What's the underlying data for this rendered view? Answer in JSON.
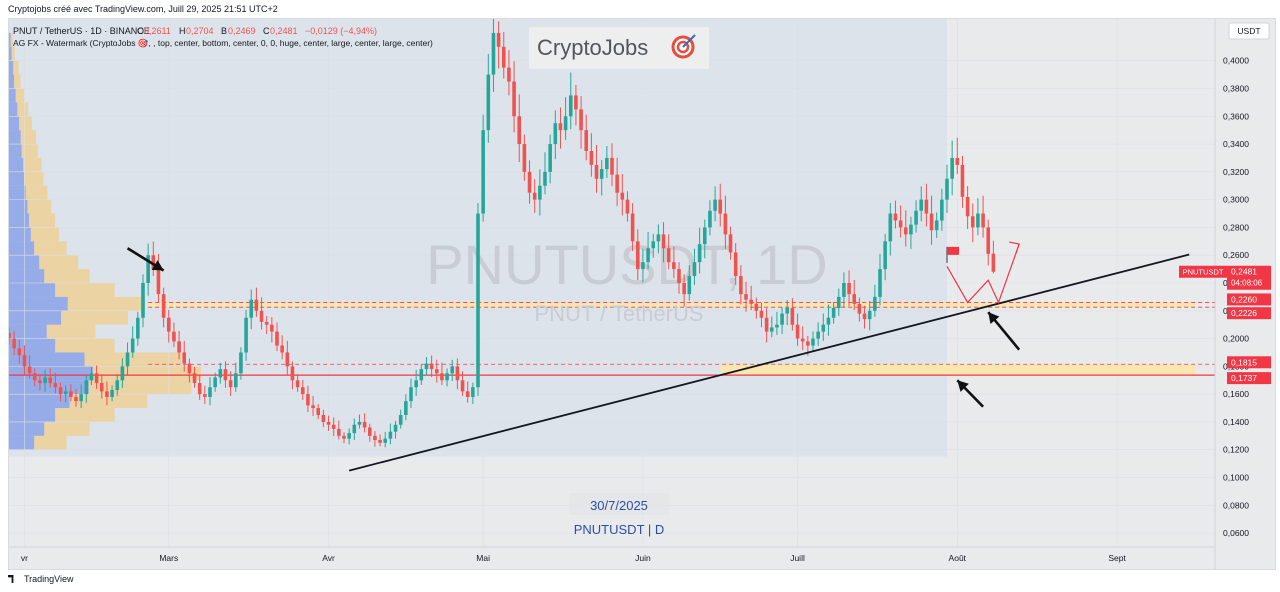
{
  "header": {
    "credit": "Cryptojobs créé avec TradingView.com, Juill 29, 2025 21:51 UTC+2"
  },
  "legend": {
    "symbol_line": "PNUT / TetherUS · 1D · BINANCE",
    "ohlc": [
      {
        "k": "O",
        "v": "0,2611"
      },
      {
        "k": "H",
        "v": "0,2704"
      },
      {
        "k": "B",
        "v": "0,2469"
      },
      {
        "k": "C",
        "v": "0,2481"
      }
    ],
    "change": "−0,0129 (−4,94%)",
    "indicator_line": "AG FX - Watermark (CryptoJobs 🎯, , top, center, bottom, center, 0, 0, huge, center, large, center, large, center)"
  },
  "watermark": {
    "brand": "CryptoJobs",
    "big_symbol": "PNUTUSDT, 1D",
    "sub_symbol": "PNUT / TetherUS",
    "date": "30/7/2025",
    "footer": "PNUTUSDT | D"
  },
  "currency_button": "USDT",
  "footer": {
    "brand": "TradingView"
  },
  "colors": {
    "up": "#26a69a",
    "down": "#ef5350",
    "trendline": "#131722",
    "level": "#f23645",
    "zone": "#fbe7a8",
    "marker": "#f23645",
    "profile_blue": "#5b7fe6",
    "profile_orange": "#f5c66a"
  },
  "chart_data": {
    "type": "candlestick",
    "symbol": "PNUT / TetherUS",
    "timeframe": "1D",
    "exchange": "BINANCE",
    "last": {
      "open": 0.2611,
      "high": 0.2704,
      "low": 0.2469,
      "close": 0.2481
    },
    "price_tag": {
      "symbol": "PNUTUSDT",
      "value": "0,2481",
      "countdown": "04:08:06"
    },
    "ylim": [
      0.05,
      0.43
    ],
    "y_ticks": [
      0.06,
      0.08,
      0.1,
      0.12,
      0.14,
      0.16,
      0.18,
      0.2,
      0.22,
      0.24,
      0.26,
      0.28,
      0.3,
      0.32,
      0.34,
      0.36,
      0.38,
      0.4
    ],
    "y_tick_labels": [
      "0,0600",
      "0,0800",
      "0,1000",
      "0,1200",
      "0,1400",
      "0,1600",
      "0,1800",
      "0,2000",
      "0,2200",
      "0,2400",
      "0,2600",
      "0,2800",
      "0,3000",
      "0,3200",
      "0,3400",
      "0,3600",
      "0,3800",
      "0,4000"
    ],
    "x_start": "2025-01-29",
    "x_end": "2025-09-20",
    "x_ticks": [
      {
        "label": "vr",
        "date": "2025-02-01"
      },
      {
        "label": "Mars",
        "date": "2025-03-01"
      },
      {
        "label": "Avr",
        "date": "2025-04-01"
      },
      {
        "label": "Mai",
        "date": "2025-05-01"
      },
      {
        "label": "Juin",
        "date": "2025-06-01"
      },
      {
        "label": "Juill",
        "date": "2025-07-01"
      },
      {
        "label": "Août",
        "date": "2025-08-01"
      },
      {
        "label": "Sept",
        "date": "2025-09-01"
      }
    ],
    "levels": [
      {
        "value": 0.226,
        "label": "0,2260",
        "style": "dashed"
      },
      {
        "value": 0.2226,
        "label": "0,2226",
        "style": "dashed"
      },
      {
        "value": 0.1815,
        "label": "0,1815",
        "style": "dashed"
      },
      {
        "value": 0.1737,
        "label": "0,1737",
        "style": "solid"
      }
    ],
    "zones": [
      {
        "from": 0.1737,
        "to": 0.1815,
        "start": "2025-06-16"
      },
      {
        "from": 0.2226,
        "to": 0.226,
        "start": "2025-02-25"
      }
    ],
    "trendline": {
      "from": {
        "date": "2025-04-05",
        "price": 0.105
      },
      "to": {
        "date": "2025-09-15",
        "price": 0.2605
      }
    },
    "projection": [
      {
        "date": "2025-07-30",
        "price": 0.252
      },
      {
        "date": "2025-08-03",
        "price": 0.226
      },
      {
        "date": "2025-08-07",
        "price": 0.242
      },
      {
        "date": "2025-08-09",
        "price": 0.226
      },
      {
        "date": "2025-08-13",
        "price": 0.268
      }
    ],
    "flag": {
      "date": "2025-07-30",
      "price": 0.266
    },
    "arrows": [
      {
        "from": {
          "date": "2025-02-21",
          "price": 0.265
        },
        "to": {
          "date": "2025-02-28",
          "price": 0.249
        }
      },
      {
        "from": {
          "date": "2025-08-13",
          "price": 0.192
        },
        "to": {
          "date": "2025-08-07",
          "price": 0.219
        }
      },
      {
        "from": {
          "date": "2025-08-06",
          "price": 0.151
        },
        "to": {
          "date": "2025-08-01",
          "price": 0.17
        }
      }
    ],
    "closes": [
      0.2,
      0.193,
      0.188,
      0.18,
      0.175,
      0.17,
      0.168,
      0.172,
      0.168,
      0.165,
      0.16,
      0.162,
      0.158,
      0.155,
      0.16,
      0.17,
      0.175,
      0.168,
      0.162,
      0.158,
      0.163,
      0.17,
      0.18,
      0.19,
      0.2,
      0.215,
      0.24,
      0.26,
      0.25,
      0.232,
      0.215,
      0.205,
      0.198,
      0.19,
      0.182,
      0.175,
      0.168,
      0.16,
      0.158,
      0.165,
      0.172,
      0.178,
      0.17,
      0.165,
      0.175,
      0.19,
      0.215,
      0.228,
      0.22,
      0.212,
      0.21,
      0.205,
      0.195,
      0.19,
      0.18,
      0.17,
      0.165,
      0.16,
      0.152,
      0.15,
      0.145,
      0.14,
      0.138,
      0.135,
      0.13,
      0.128,
      0.132,
      0.138,
      0.14,
      0.136,
      0.13,
      0.127,
      0.125,
      0.128,
      0.133,
      0.138,
      0.145,
      0.155,
      0.165,
      0.17,
      0.178,
      0.182,
      0.178,
      0.175,
      0.17,
      0.175,
      0.18,
      0.17,
      0.162,
      0.158,
      0.165,
      0.29,
      0.35,
      0.39,
      0.42,
      0.41,
      0.395,
      0.385,
      0.36,
      0.34,
      0.32,
      0.305,
      0.3,
      0.31,
      0.32,
      0.34,
      0.355,
      0.35,
      0.36,
      0.375,
      0.365,
      0.35,
      0.335,
      0.325,
      0.315,
      0.322,
      0.33,
      0.318,
      0.305,
      0.3,
      0.29,
      0.27,
      0.25,
      0.255,
      0.265,
      0.27,
      0.275,
      0.265,
      0.255,
      0.25,
      0.24,
      0.232,
      0.245,
      0.255,
      0.268,
      0.28,
      0.292,
      0.3,
      0.29,
      0.275,
      0.262,
      0.245,
      0.232,
      0.228,
      0.225,
      0.22,
      0.215,
      0.205,
      0.208,
      0.21,
      0.218,
      0.222,
      0.21,
      0.2,
      0.198,
      0.195,
      0.2,
      0.205,
      0.21,
      0.215,
      0.222,
      0.23,
      0.24,
      0.232,
      0.225,
      0.218,
      0.214,
      0.22,
      0.23,
      0.25,
      0.27,
      0.29,
      0.285,
      0.28,
      0.275,
      0.282,
      0.292,
      0.3,
      0.29,
      0.278,
      0.285,
      0.3,
      0.315,
      0.33,
      0.325,
      0.302,
      0.288,
      0.28,
      0.29,
      0.28,
      0.261,
      0.2481
    ],
    "volume_profile": [
      {
        "price": 0.125,
        "vol": 0.3
      },
      {
        "price": 0.135,
        "vol": 0.42
      },
      {
        "price": 0.145,
        "vol": 0.55
      },
      {
        "price": 0.155,
        "vol": 0.72
      },
      {
        "price": 0.165,
        "vol": 0.95
      },
      {
        "price": 0.175,
        "vol": 1.0
      },
      {
        "price": 0.185,
        "vol": 0.9
      },
      {
        "price": 0.195,
        "vol": 0.55
      },
      {
        "price": 0.205,
        "vol": 0.45
      },
      {
        "price": 0.215,
        "vol": 0.62
      },
      {
        "price": 0.225,
        "vol": 0.7
      },
      {
        "price": 0.235,
        "vol": 0.55
      },
      {
        "price": 0.245,
        "vol": 0.42
      },
      {
        "price": 0.255,
        "vol": 0.36
      },
      {
        "price": 0.265,
        "vol": 0.3
      },
      {
        "price": 0.275,
        "vol": 0.26
      },
      {
        "price": 0.285,
        "vol": 0.24
      },
      {
        "price": 0.295,
        "vol": 0.22
      },
      {
        "price": 0.305,
        "vol": 0.2
      },
      {
        "price": 0.315,
        "vol": 0.18
      },
      {
        "price": 0.325,
        "vol": 0.17
      },
      {
        "price": 0.335,
        "vol": 0.15
      },
      {
        "price": 0.345,
        "vol": 0.14
      },
      {
        "price": 0.355,
        "vol": 0.12
      },
      {
        "price": 0.365,
        "vol": 0.1
      },
      {
        "price": 0.375,
        "vol": 0.08
      },
      {
        "price": 0.385,
        "vol": 0.06
      },
      {
        "price": 0.395,
        "vol": 0.05
      },
      {
        "price": 0.405,
        "vol": 0.03
      },
      {
        "price": 0.415,
        "vol": 0.02
      }
    ]
  }
}
